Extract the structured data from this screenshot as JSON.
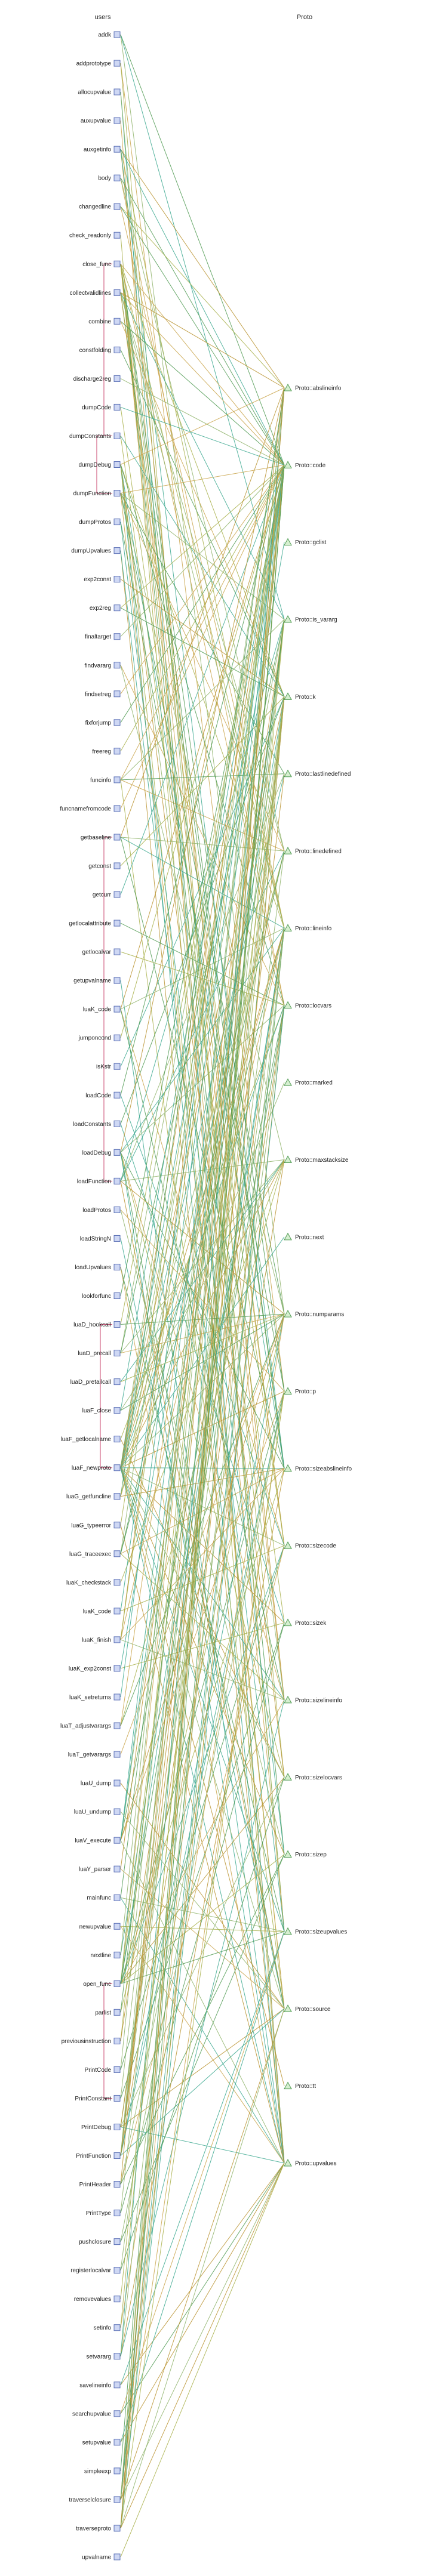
{
  "columns": {
    "left": "users",
    "right": "Proto"
  },
  "users": [
    "addk",
    "addprototype",
    "allocupvalue",
    "auxupvalue",
    "auxgetinfo",
    "body",
    "changedline",
    "check_readonly",
    "close_func",
    "collectvalidlines",
    "combine",
    "constfolding",
    "discharge2reg",
    "dumpCode",
    "dumpConstants",
    "dumpDebug",
    "dumpFunction",
    "dumpProtos",
    "dumpUpvalues",
    "exp2const",
    "exp2reg",
    "finaltarget",
    "findvararg",
    "findsetreg",
    "fixforjump",
    "freereg",
    "funcinfo",
    "funcnamefromcode",
    "getbaseline",
    "getconst",
    "getcurr",
    "getlocalattribute",
    "getlocalvar",
    "getupvalname",
    "luaK_code",
    "jumponcond",
    "isKstr",
    "loadCode",
    "loadConstants",
    "loadDebug",
    "loadFunction",
    "loadProtos",
    "loadStringN",
    "loadUpvalues",
    "lookforfunc",
    "luaD_hookcall",
    "luaD_precall",
    "luaD_pretailcall",
    "luaF_close",
    "luaF_getlocalname",
    "luaF_newproto",
    "luaG_getfuncline",
    "luaG_typeerror",
    "luaG_traceexec",
    "luaK_checkstack",
    "luaK_code",
    "luaK_finish",
    "luaK_exp2const",
    "luaK_setreturns",
    "luaT_adjustvarargs",
    "luaT_getvarargs",
    "luaU_dump",
    "luaU_undump",
    "luaV_execute",
    "luaY_parser",
    "mainfunc",
    "newupvalue",
    "nextline",
    "open_func",
    "parlist",
    "previousinstruction",
    "PrintCode",
    "PrintConstant",
    "PrintDebug",
    "PrintFunction",
    "PrintHeader",
    "PrintType",
    "pushclosure",
    "registerlocalvar",
    "removevalues",
    "setinfo",
    "setvararg",
    "savelineinfo",
    "searchupvalue",
    "setupvalue",
    "simpleexp",
    "traverselclosure",
    "traverseproto",
    "upvalname"
  ],
  "protos": [
    "Proto::abslineinfo",
    "Proto::code",
    "Proto::gclist",
    "Proto::is_vararg",
    "Proto::k",
    "Proto::lastlinedefined",
    "Proto::linedefined",
    "Proto::lineinfo",
    "Proto::locvars",
    "Proto::marked",
    "Proto::maxstacksize",
    "Proto::next",
    "Proto::numparams",
    "Proto::p",
    "Proto::sizeabslineinfo",
    "Proto::sizecode",
    "Proto::sizek",
    "Proto::sizelineinfo",
    "Proto::sizelocvars",
    "Proto::sizep",
    "Proto::sizeupvalues",
    "Proto::source",
    "Proto::tt",
    "Proto::upvalues"
  ],
  "palette": {
    "user_fill": "#cfd8f4",
    "user_stroke": "#5a6fb5",
    "proto_fill": "#d6efd0",
    "proto_stroke": "#4f9a52",
    "edge_colors": [
      "#b9922f",
      "#c9a44a",
      "#8fb36a",
      "#4f9a52",
      "#3aa88f",
      "#a8b04a"
    ],
    "self_link": "#c8466e"
  },
  "edges": [
    [
      0,
      1
    ],
    [
      0,
      3
    ],
    [
      0,
      12
    ],
    [
      1,
      13
    ],
    [
      1,
      20
    ],
    [
      2,
      23
    ],
    [
      2,
      20
    ],
    [
      3,
      23
    ],
    [
      4,
      0
    ],
    [
      4,
      1
    ],
    [
      4,
      7
    ],
    [
      4,
      17
    ],
    [
      4,
      14
    ],
    [
      5,
      1
    ],
    [
      5,
      8
    ],
    [
      5,
      6
    ],
    [
      6,
      7
    ],
    [
      6,
      0
    ],
    [
      6,
      1
    ],
    [
      7,
      23
    ],
    [
      8,
      1
    ],
    [
      8,
      4
    ],
    [
      8,
      13
    ],
    [
      8,
      8
    ],
    [
      8,
      7
    ],
    [
      8,
      14
    ],
    [
      8,
      17
    ],
    [
      8,
      18
    ],
    [
      8,
      19
    ],
    [
      8,
      20
    ],
    [
      8,
      15
    ],
    [
      9,
      1
    ],
    [
      9,
      7
    ],
    [
      9,
      0
    ],
    [
      9,
      3
    ],
    [
      9,
      6
    ],
    [
      9,
      14
    ],
    [
      9,
      15
    ],
    [
      10,
      1
    ],
    [
      10,
      4
    ],
    [
      11,
      4
    ],
    [
      12,
      1
    ],
    [
      13,
      1
    ],
    [
      13,
      15
    ],
    [
      14,
      4
    ],
    [
      14,
      16
    ],
    [
      15,
      0
    ],
    [
      15,
      7
    ],
    [
      15,
      8
    ],
    [
      15,
      14
    ],
    [
      15,
      17
    ],
    [
      15,
      18
    ],
    [
      15,
      23
    ],
    [
      15,
      21
    ],
    [
      16,
      1
    ],
    [
      16,
      3
    ],
    [
      16,
      5
    ],
    [
      16,
      6
    ],
    [
      16,
      10
    ],
    [
      16,
      12
    ],
    [
      16,
      21
    ],
    [
      17,
      13
    ],
    [
      17,
      19
    ],
    [
      18,
      23
    ],
    [
      18,
      20
    ],
    [
      19,
      4
    ],
    [
      20,
      1
    ],
    [
      20,
      4
    ],
    [
      21,
      1
    ],
    [
      22,
      8
    ],
    [
      22,
      12
    ],
    [
      23,
      1
    ],
    [
      24,
      1
    ],
    [
      25,
      1
    ],
    [
      26,
      1
    ],
    [
      26,
      3
    ],
    [
      26,
      5
    ],
    [
      26,
      6
    ],
    [
      26,
      21
    ],
    [
      27,
      1
    ],
    [
      28,
      0
    ],
    [
      28,
      7
    ],
    [
      28,
      6
    ],
    [
      28,
      14
    ],
    [
      29,
      4
    ],
    [
      30,
      1
    ],
    [
      31,
      8
    ],
    [
      32,
      8
    ],
    [
      33,
      23
    ],
    [
      34,
      1
    ],
    [
      34,
      15
    ],
    [
      34,
      7
    ],
    [
      34,
      17
    ],
    [
      35,
      1
    ],
    [
      36,
      4
    ],
    [
      37,
      1
    ],
    [
      37,
      15
    ],
    [
      38,
      4
    ],
    [
      38,
      16
    ],
    [
      39,
      0
    ],
    [
      39,
      7
    ],
    [
      39,
      8
    ],
    [
      39,
      14
    ],
    [
      39,
      17
    ],
    [
      39,
      18
    ],
    [
      39,
      21
    ],
    [
      39,
      23
    ],
    [
      40,
      21
    ],
    [
      40,
      6
    ],
    [
      40,
      5
    ],
    [
      40,
      12
    ],
    [
      40,
      3
    ],
    [
      40,
      10
    ],
    [
      41,
      13
    ],
    [
      41,
      19
    ],
    [
      42,
      21
    ],
    [
      43,
      20
    ],
    [
      43,
      23
    ],
    [
      44,
      1
    ],
    [
      45,
      1
    ],
    [
      45,
      12
    ],
    [
      46,
      1
    ],
    [
      46,
      3
    ],
    [
      46,
      12
    ],
    [
      46,
      10
    ],
    [
      47,
      10
    ],
    [
      47,
      12
    ],
    [
      48,
      1
    ],
    [
      48,
      10
    ],
    [
      48,
      12
    ],
    [
      49,
      8
    ],
    [
      49,
      18
    ],
    [
      50,
      0
    ],
    [
      50,
      1
    ],
    [
      50,
      2
    ],
    [
      50,
      3
    ],
    [
      50,
      4
    ],
    [
      50,
      5
    ],
    [
      50,
      6
    ],
    [
      50,
      7
    ],
    [
      50,
      8
    ],
    [
      50,
      9
    ],
    [
      50,
      10
    ],
    [
      50,
      11
    ],
    [
      50,
      12
    ],
    [
      50,
      13
    ],
    [
      50,
      14
    ],
    [
      50,
      15
    ],
    [
      50,
      16
    ],
    [
      50,
      17
    ],
    [
      50,
      18
    ],
    [
      50,
      19
    ],
    [
      50,
      20
    ],
    [
      50,
      21
    ],
    [
      50,
      22
    ],
    [
      50,
      23
    ],
    [
      51,
      0
    ],
    [
      51,
      7
    ],
    [
      51,
      6
    ],
    [
      51,
      14
    ],
    [
      52,
      1
    ],
    [
      52,
      23
    ],
    [
      53,
      1
    ],
    [
      53,
      7
    ],
    [
      53,
      14
    ],
    [
      53,
      17
    ],
    [
      53,
      6
    ],
    [
      54,
      10
    ],
    [
      55,
      1
    ],
    [
      55,
      15
    ],
    [
      56,
      7
    ],
    [
      56,
      17
    ],
    [
      56,
      0
    ],
    [
      56,
      14
    ],
    [
      56,
      1
    ],
    [
      57,
      4
    ],
    [
      57,
      16
    ],
    [
      58,
      1
    ],
    [
      59,
      12
    ],
    [
      59,
      3
    ],
    [
      59,
      10
    ],
    [
      60,
      12
    ],
    [
      61,
      21
    ],
    [
      62,
      21
    ],
    [
      63,
      1
    ],
    [
      63,
      4
    ],
    [
      63,
      8
    ],
    [
      63,
      13
    ],
    [
      63,
      23
    ],
    [
      63,
      12
    ],
    [
      63,
      3
    ],
    [
      64,
      3
    ],
    [
      64,
      21
    ],
    [
      65,
      3
    ],
    [
      65,
      23
    ],
    [
      65,
      20
    ],
    [
      66,
      23
    ],
    [
      66,
      20
    ],
    [
      67,
      7
    ],
    [
      67,
      0
    ],
    [
      68,
      1
    ],
    [
      68,
      4
    ],
    [
      68,
      13
    ],
    [
      68,
      7
    ],
    [
      68,
      0
    ],
    [
      68,
      8
    ],
    [
      68,
      17
    ],
    [
      68,
      14
    ],
    [
      68,
      18
    ],
    [
      68,
      15
    ],
    [
      68,
      19
    ],
    [
      68,
      20
    ],
    [
      69,
      12
    ],
    [
      69,
      3
    ],
    [
      70,
      1
    ],
    [
      70,
      7
    ],
    [
      71,
      1
    ],
    [
      71,
      15
    ],
    [
      72,
      4
    ],
    [
      72,
      16
    ],
    [
      73,
      7
    ],
    [
      73,
      8
    ],
    [
      73,
      23
    ],
    [
      73,
      18
    ],
    [
      73,
      21
    ],
    [
      74,
      1
    ],
    [
      74,
      4
    ],
    [
      74,
      13
    ],
    [
      74,
      6
    ],
    [
      74,
      5
    ],
    [
      74,
      12
    ],
    [
      74,
      3
    ],
    [
      74,
      10
    ],
    [
      74,
      21
    ],
    [
      75,
      1
    ],
    [
      75,
      15
    ],
    [
      75,
      13
    ],
    [
      75,
      19
    ],
    [
      76,
      4
    ],
    [
      76,
      16
    ],
    [
      77,
      13
    ],
    [
      77,
      19
    ],
    [
      78,
      8
    ],
    [
      78,
      18
    ],
    [
      79,
      4
    ],
    [
      80,
      12
    ],
    [
      80,
      3
    ],
    [
      81,
      0
    ],
    [
      81,
      7
    ],
    [
      81,
      14
    ],
    [
      81,
      17
    ],
    [
      82,
      23
    ],
    [
      82,
      20
    ],
    [
      83,
      23
    ],
    [
      83,
      20
    ],
    [
      84,
      23
    ],
    [
      84,
      20
    ],
    [
      85,
      1
    ],
    [
      86,
      1
    ],
    [
      86,
      4
    ],
    [
      86,
      13
    ],
    [
      86,
      23
    ],
    [
      86,
      8
    ],
    [
      86,
      7
    ],
    [
      86,
      0
    ],
    [
      86,
      21
    ],
    [
      87,
      21
    ],
    [
      87,
      1
    ],
    [
      87,
      4
    ],
    [
      87,
      13
    ],
    [
      87,
      23
    ],
    [
      87,
      8
    ],
    [
      87,
      7
    ],
    [
      87,
      0
    ],
    [
      88,
      23
    ]
  ],
  "self_links": [
    [
      8,
      14
    ],
    [
      14,
      16
    ],
    [
      28,
      40
    ],
    [
      45,
      50
    ],
    [
      68,
      72
    ]
  ]
}
